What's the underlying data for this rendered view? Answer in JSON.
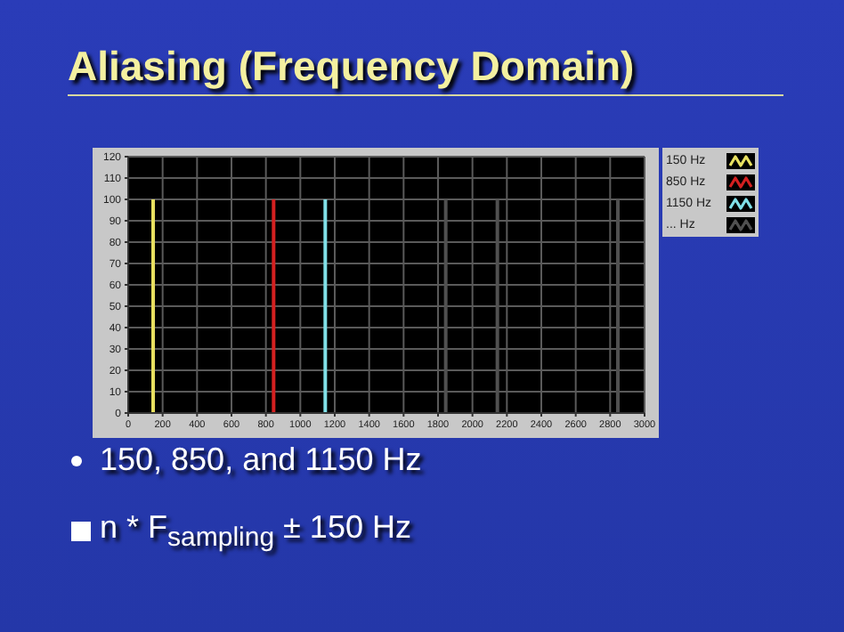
{
  "chart_data": {
    "type": "bar",
    "title": "Aliasing (Frequency Domain)",
    "xlim": [
      0,
      3000
    ],
    "xticks": [
      0,
      200,
      400,
      600,
      800,
      1000,
      1200,
      1400,
      1600,
      1800,
      2000,
      2200,
      2400,
      2600,
      2800,
      3000
    ],
    "ylim": [
      0,
      120
    ],
    "yticks": [
      0,
      10,
      20,
      30,
      40,
      50,
      60,
      70,
      80,
      90,
      100,
      110,
      120
    ],
    "grid": true,
    "legend": "top right",
    "series": [
      {
        "name": "150 Hz",
        "color": "#e8e060",
        "x": [
          150
        ],
        "values": [
          100
        ]
      },
      {
        "name": "850 Hz",
        "color": "#d42020",
        "x": [
          850
        ],
        "values": [
          100
        ]
      },
      {
        "name": "1150 Hz",
        "color": "#80e0e8",
        "x": [
          1150
        ],
        "values": [
          100
        ]
      },
      {
        "name": "... Hz",
        "color": "#505050",
        "x": [
          1850,
          2150,
          2850
        ],
        "values": [
          100,
          100,
          100
        ]
      }
    ],
    "annotations": [
      "150, 850, and 1150 Hz",
      "n * F$_{sampling}$ ± 150 Hz"
    ]
  }
}
